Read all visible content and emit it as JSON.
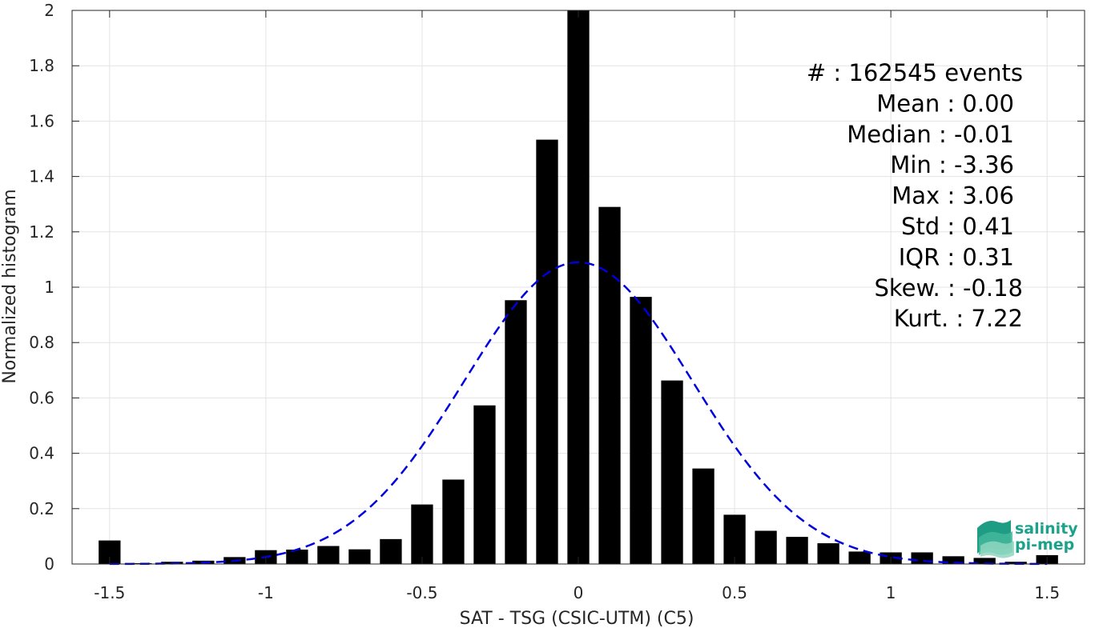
{
  "chart_data": {
    "type": "bar",
    "xlabel": "SAT - TSG (CSIC-UTM) (C5)",
    "ylabel": "Normalized histogram",
    "xlim": [
      -1.62,
      1.62
    ],
    "ylim": [
      0,
      2
    ],
    "xticks": [
      -1.5,
      -1,
      -0.5,
      0,
      0.5,
      1,
      1.5
    ],
    "xtick_labels": [
      "-1.5",
      "-1",
      "-0.5",
      "0",
      "0.5",
      "1",
      "1.5"
    ],
    "yticks": [
      0,
      0.2,
      0.4,
      0.6,
      0.8,
      1,
      1.2,
      1.4,
      1.6,
      1.8,
      2
    ],
    "ytick_labels": [
      "0",
      "0.2",
      "0.4",
      "0.6",
      "0.8",
      "1",
      "1.2",
      "1.4",
      "1.6",
      "1.8",
      "2"
    ],
    "grid": true,
    "bar_width": 0.07,
    "bar_color": "#000000",
    "bins": [
      -1.5,
      -1.4,
      -1.3,
      -1.2,
      -1.1,
      -1.0,
      -0.9,
      -0.8,
      -0.7,
      -0.6,
      -0.5,
      -0.4,
      -0.3,
      -0.2,
      -0.1,
      0.0,
      0.1,
      0.2,
      0.3,
      0.4,
      0.5,
      0.6,
      0.7,
      0.8,
      0.9,
      1.0,
      1.1,
      1.2,
      1.3,
      1.4,
      1.5
    ],
    "values": [
      0.085,
      0.003,
      0.008,
      0.012,
      0.025,
      0.05,
      0.052,
      0.065,
      0.053,
      0.09,
      0.215,
      0.305,
      0.573,
      0.953,
      1.533,
      2.0,
      1.29,
      0.965,
      0.663,
      0.345,
      0.178,
      0.12,
      0.098,
      0.075,
      0.045,
      0.042,
      0.042,
      0.028,
      0.022,
      0.008,
      0.032
    ],
    "fit": {
      "type": "gaussian",
      "mean": 0.0,
      "std": 0.365,
      "peak": 1.09,
      "color": "#0000dd",
      "style": "dashed"
    },
    "stats": [
      {
        "label": "#",
        "value": "  : 162545 events"
      },
      {
        "label": "Mean",
        "value": " : 0.00"
      },
      {
        "label": "Median",
        "value": " : -0.01"
      },
      {
        "label": "Min",
        "value": " : -3.36"
      },
      {
        "label": "Max",
        "value": " : 3.06"
      },
      {
        "label": "Std",
        "value": " : 0.41"
      },
      {
        "label": "IQR",
        "value": " : 0.31"
      },
      {
        "label": "Skew.",
        "value": " : -0.18"
      },
      {
        "label": "Kurt.",
        "value": " : 7.22"
      }
    ]
  },
  "logo": {
    "line1": "salinity",
    "line2": "pi-mep",
    "color": "#1aa38a"
  }
}
